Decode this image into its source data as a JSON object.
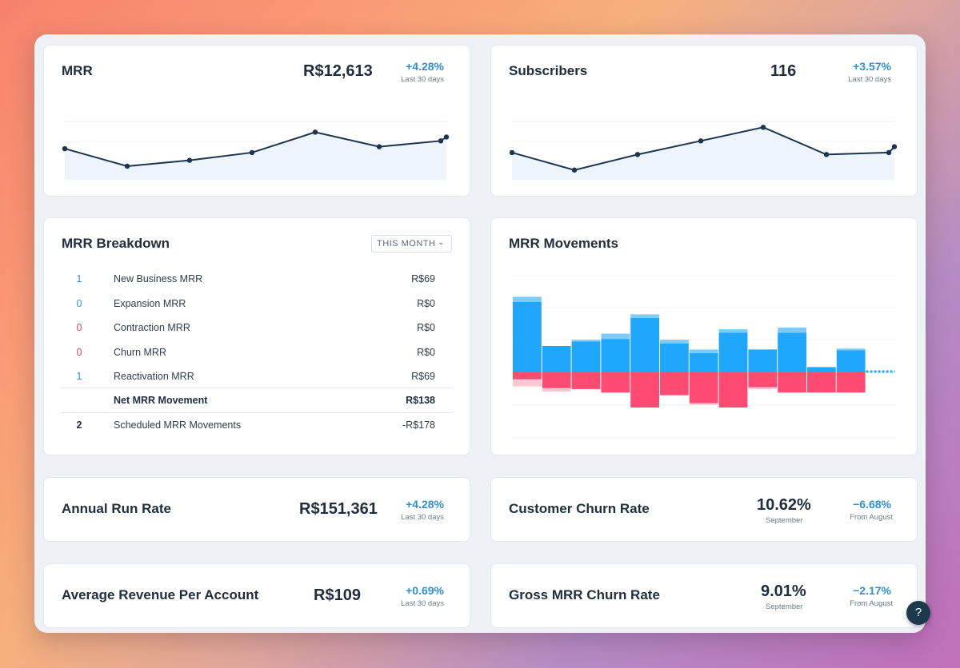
{
  "colors": {
    "accent_blue": "#2e8fd9",
    "positive_bar": "#1ea7fd",
    "negative_bar": "#ff4a74",
    "neutral_num": "#2e3d4d"
  },
  "mrr_card": {
    "title": "MRR",
    "value": "R$12,613",
    "delta": "+4.28%",
    "delta_note": "Last 30 days",
    "series": [
      32,
      14,
      20,
      28,
      49,
      34,
      40,
      44
    ]
  },
  "subscribers_card": {
    "title": "Subscribers",
    "value": "116",
    "delta": "+3.57%",
    "delta_note": "Last 30 days",
    "series": [
      28,
      10,
      26,
      40,
      54,
      26,
      28,
      34
    ]
  },
  "breakdown": {
    "title": "MRR Breakdown",
    "period_select": "THIS MONTH",
    "rows": [
      {
        "count": "1",
        "label": "New Business MRR",
        "value": "R$69",
        "count_color": "#2e8fd9"
      },
      {
        "count": "0",
        "label": "Expansion MRR",
        "value": "R$0",
        "count_color": "#2e8fd9"
      },
      {
        "count": "0",
        "label": "Contraction MRR",
        "value": "R$0",
        "count_color": "#e8456a"
      },
      {
        "count": "0",
        "label": "Churn MRR",
        "value": "R$0",
        "count_color": "#e8456a"
      },
      {
        "count": "1",
        "label": "Reactivation MRR",
        "value": "R$69",
        "count_color": "#2e8fd9"
      }
    ],
    "net": {
      "label": "Net MRR Movement",
      "value": "R$138"
    },
    "scheduled": {
      "count": "2",
      "label": "Scheduled MRR Movements",
      "value": "-R$178"
    }
  },
  "movements": {
    "title": "MRR Movements",
    "chart_data": {
      "type": "bar",
      "positive": [
        80,
        30,
        35,
        38,
        62,
        33,
        22,
        45,
        26,
        45,
        6,
        25
      ],
      "positive_top": [
        6,
        0,
        2,
        6,
        4,
        4,
        4,
        4,
        0,
        6,
        0,
        2
      ],
      "negative": [
        -8,
        -18,
        -19,
        -23,
        -40,
        -26,
        -35,
        -40,
        -17,
        -23,
        -23,
        -23
      ],
      "negative_tail": [
        -8,
        -4,
        0,
        0,
        0,
        0,
        -2,
        0,
        -2,
        0,
        0,
        0
      ]
    }
  },
  "arr_card": {
    "title": "Annual Run Rate",
    "value": "R$151,361",
    "delta": "+4.28%",
    "delta_note": "Last 30 days"
  },
  "churn_card": {
    "title": "Customer Churn Rate",
    "value": "10.62%",
    "value_note": "September",
    "delta": "−6.68%",
    "delta_note": "From August"
  },
  "arpa_card": {
    "title": "Average Revenue Per Account",
    "value": "R$109",
    "delta": "+0.69%",
    "delta_note": "Last 30 days"
  },
  "gross_churn_card": {
    "title": "Gross MRR Churn Rate",
    "value": "9.01%",
    "value_note": "September",
    "delta": "−2.17%",
    "delta_note": "From August"
  },
  "help_button": {
    "label": "?"
  }
}
